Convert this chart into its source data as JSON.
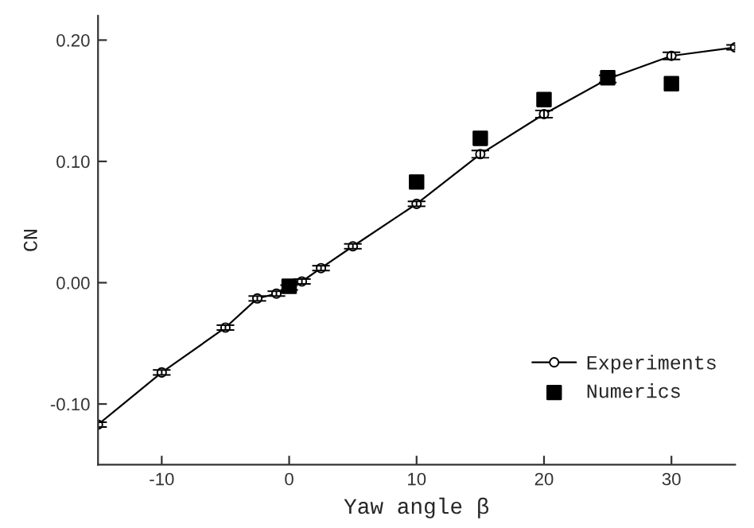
{
  "chart_data": {
    "type": "line",
    "xlabel": "Yaw angle β",
    "ylabel": "CN",
    "xlim": [
      -15,
      35
    ],
    "ylim": [
      -0.15,
      0.22
    ],
    "xticks": [
      -10,
      0,
      10,
      20,
      30
    ],
    "yticks": [
      {
        "value": -0.1,
        "label": "-0.10"
      },
      {
        "value": 0.0,
        "label": "0.00"
      },
      {
        "value": 0.1,
        "label": "0.10"
      },
      {
        "value": 0.2,
        "label": "0.20"
      }
    ],
    "grid": false,
    "legend": "bottom right",
    "series": [
      {
        "name": "Experiments",
        "type": "line",
        "marker": "circle",
        "color": "#000000",
        "x": [
          -15,
          -10,
          -5,
          -2.5,
          -1,
          0,
          1,
          2.5,
          5,
          10,
          15,
          20,
          25,
          30,
          35
        ],
        "values": [
          -0.117,
          -0.074,
          -0.037,
          -0.013,
          -0.009,
          -0.004,
          0.001,
          0.012,
          0.03,
          0.065,
          0.106,
          0.139,
          0.168,
          0.187,
          0.194
        ],
        "errors": [
          0.002,
          0.002,
          0.002,
          0.002,
          0.002,
          0.002,
          0.002,
          0.002,
          0.002,
          0.002,
          0.003,
          0.003,
          0.003,
          0.003,
          0.002
        ]
      },
      {
        "name": "Numerics",
        "type": "scatter",
        "marker": "square",
        "color": "#000000",
        "x": [
          0,
          10,
          15,
          20,
          25,
          30
        ],
        "values": [
          -0.003,
          0.083,
          0.119,
          0.151,
          0.169,
          0.164
        ]
      }
    ]
  }
}
